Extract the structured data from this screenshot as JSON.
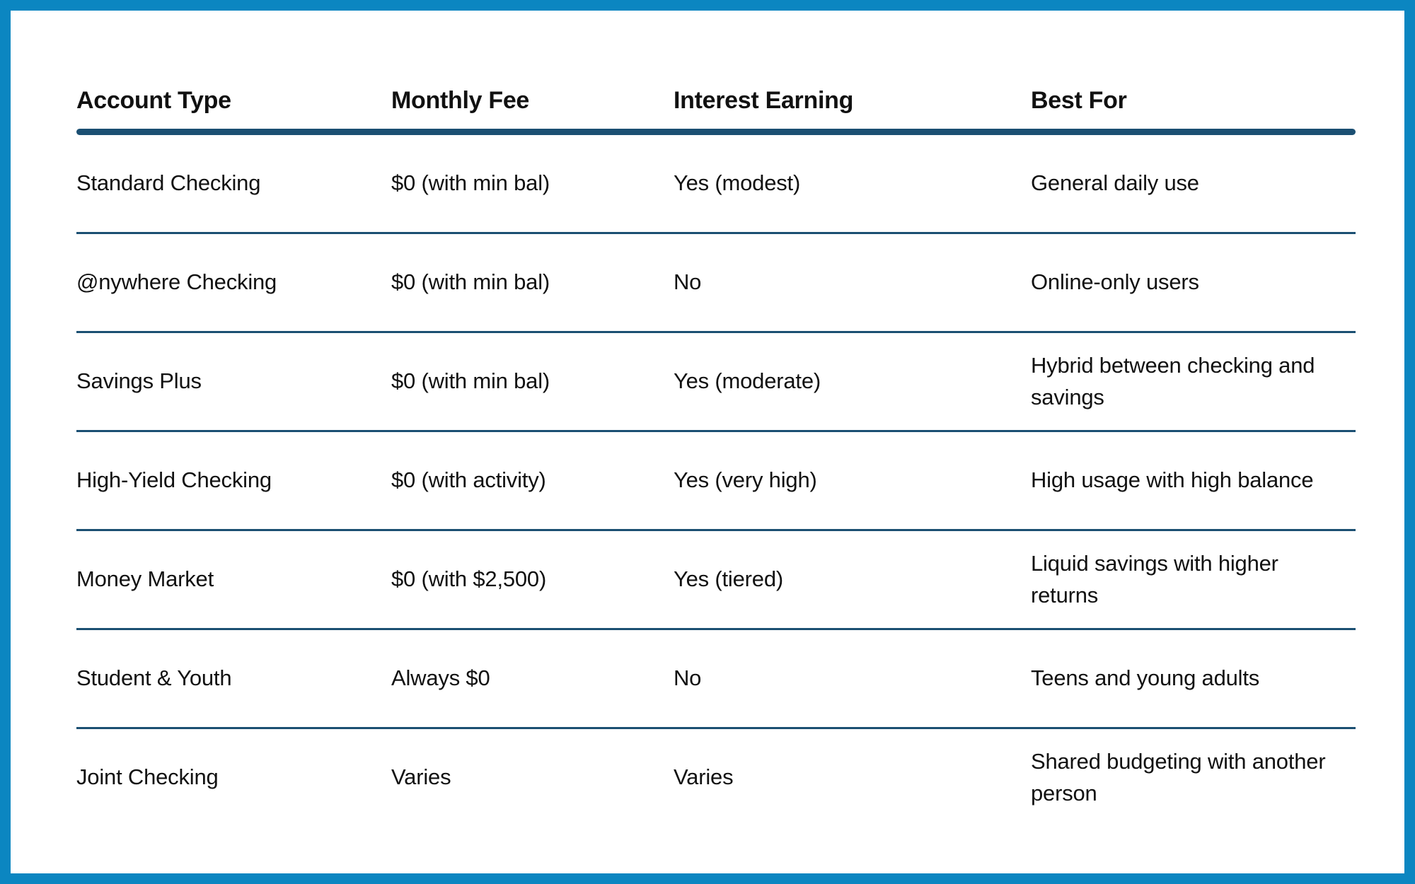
{
  "table": {
    "columns": [
      "Account Type",
      "Monthly Fee",
      "Interest Earning",
      "Best For"
    ],
    "rows": [
      [
        "Standard Checking",
        "$0 (with min bal)",
        "Yes (modest)",
        "General daily use"
      ],
      [
        "@nywhere Checking",
        "$0 (with min bal)",
        "No",
        "Online-only users"
      ],
      [
        "Savings Plus",
        "$0 (with min bal)",
        "Yes (moderate)",
        "Hybrid between checking and savings"
      ],
      [
        "High-Yield Checking",
        "$0 (with activity)",
        "Yes (very high)",
        "High usage with high balance"
      ],
      [
        "Money Market",
        "$0 (with $2,500)",
        "Yes (tiered)",
        "Liquid savings with higher returns"
      ],
      [
        "Student & Youth",
        "Always $0",
        "No",
        "Teens and young adults"
      ],
      [
        "Joint Checking",
        "Varies",
        "Varies",
        "Shared budgeting with another person"
      ]
    ],
    "colors": {
      "frame_border": "#0b86c1",
      "rule": "#1b4f72",
      "text": "#111111",
      "background": "#ffffff"
    }
  }
}
